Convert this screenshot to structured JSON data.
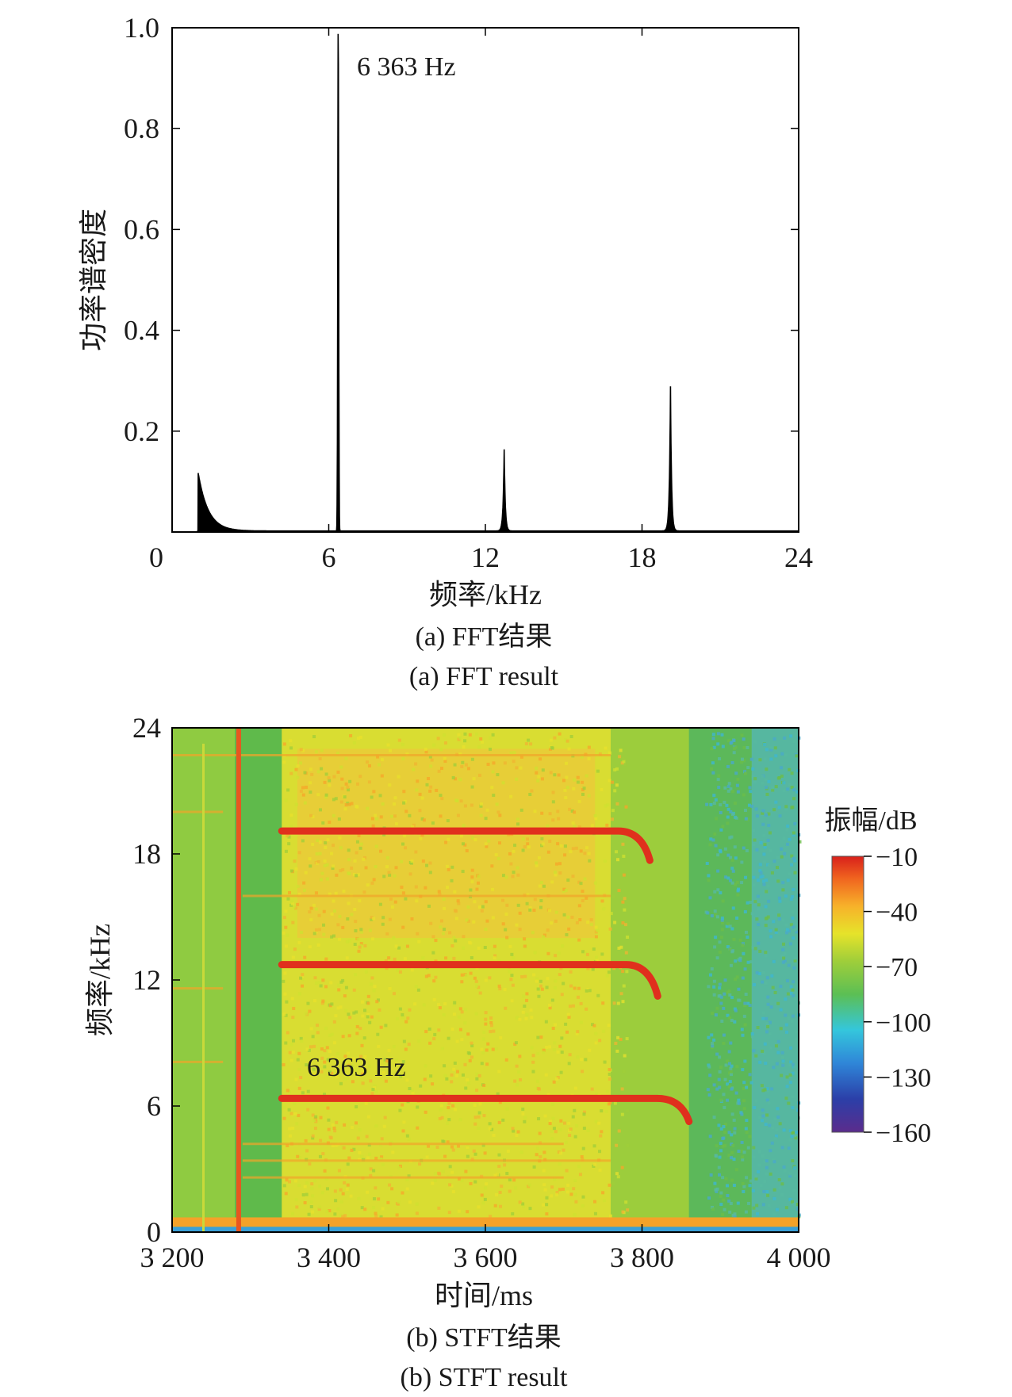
{
  "chart_data": [
    {
      "type": "line",
      "ylabel": "功率谱密度",
      "xlabel": "频率/kHz",
      "caption_cn": "(a) FFT结果",
      "caption_en": "(a) FFT result",
      "annotation": "6 363 Hz",
      "xlim": [
        0,
        24
      ],
      "ylim": [
        0,
        1.0
      ],
      "xticks": [
        "0",
        "6",
        "12",
        "18",
        "24"
      ],
      "yticks": [
        "0.2",
        "0.4",
        "0.6",
        "0.8",
        "1.0"
      ],
      "grid": false,
      "line_color": "#000000",
      "peaks": [
        {
          "x": 1.0,
          "y": 0.115
        },
        {
          "x": 6.363,
          "y": 1.0
        },
        {
          "x": 12.72,
          "y": 0.162
        },
        {
          "x": 19.09,
          "y": 0.287
        }
      ]
    },
    {
      "type": "heatmap",
      "ylabel": "频率/kHz",
      "xlabel": "时间/ms",
      "caption_cn": "(b) STFT结果",
      "caption_en": "(b) STFT result",
      "annotation": "6 363 Hz",
      "xlim": [
        3200,
        4000
      ],
      "ylim": [
        0,
        24
      ],
      "xticks": [
        "3 200",
        "3 400",
        "3 600",
        "3 800",
        "4 000"
      ],
      "yticks": [
        "0",
        "6",
        "12",
        "18",
        "24"
      ],
      "colorbar": {
        "label": "振幅/dB",
        "range": [
          -160,
          -10
        ],
        "ticks": [
          "−10",
          "−40",
          "−70",
          "−100",
          "−130",
          "−160"
        ]
      },
      "colormap": [
        "#5b2c8c",
        "#2b3fa8",
        "#2f86d8",
        "#34c6dc",
        "#5cbf54",
        "#9fce3a",
        "#e6e32a",
        "#f7b12a",
        "#f0641f",
        "#d8201b"
      ],
      "bands": [
        {
          "freq_khz": 6.363,
          "start_ms": 3340,
          "end_ms": 3860
        },
        {
          "freq_khz": 12.73,
          "start_ms": 3340,
          "end_ms": 3820
        },
        {
          "freq_khz": 19.09,
          "start_ms": 3340,
          "end_ms": 3810
        }
      ],
      "vertical_line_ms": 3285
    }
  ]
}
